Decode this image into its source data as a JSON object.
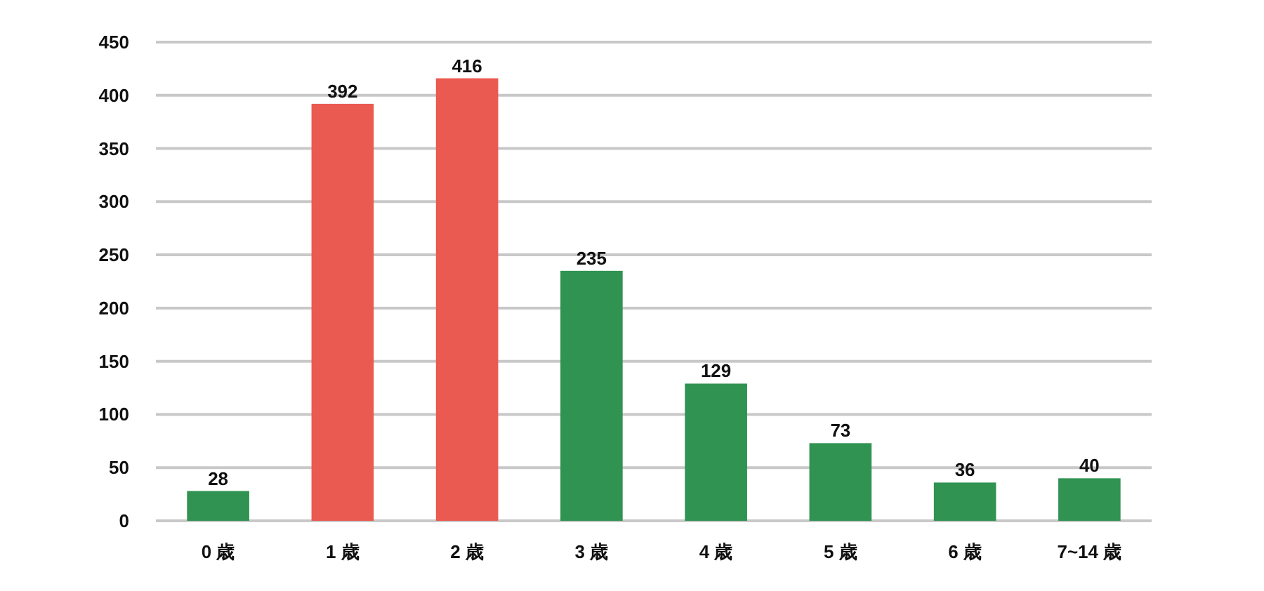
{
  "chart_data": {
    "type": "bar",
    "categories": [
      "0 歳",
      "1 歳",
      "2 歳",
      "3 歳",
      "4 歳",
      "5 歳",
      "6 歳",
      "7~14 歳"
    ],
    "values": [
      28,
      392,
      416,
      235,
      129,
      73,
      36,
      40
    ],
    "colors": [
      "#309352",
      "#ea5a50",
      "#ea5a50",
      "#309352",
      "#309352",
      "#309352",
      "#309352",
      "#309352"
    ],
    "ylim": [
      0,
      450
    ],
    "yticks": [
      0,
      50,
      100,
      150,
      200,
      250,
      300,
      350,
      400,
      450
    ],
    "grid": "y",
    "data_labels": true
  }
}
